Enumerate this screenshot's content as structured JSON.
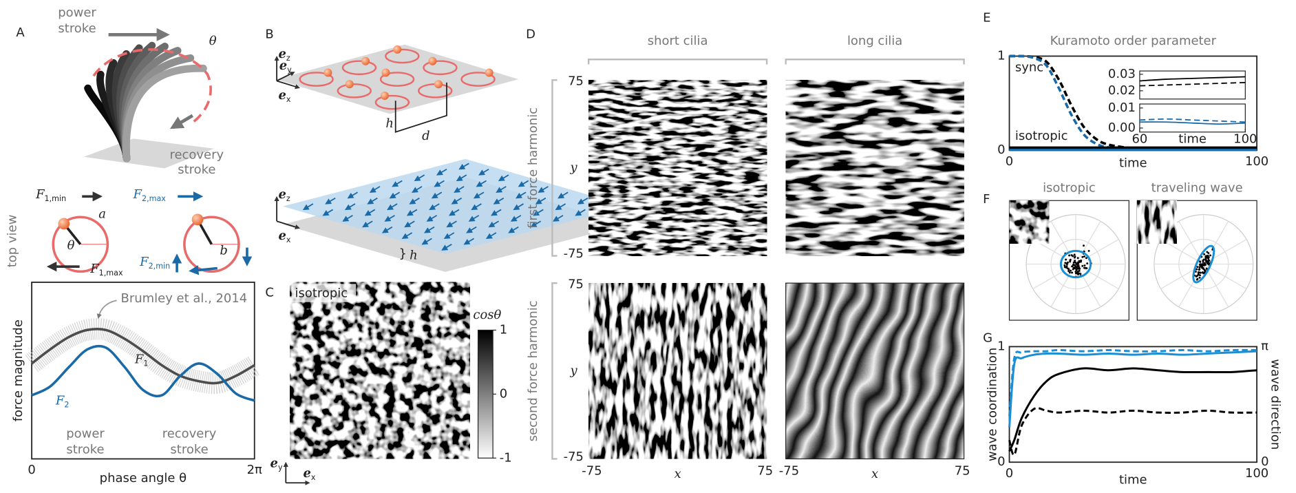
{
  "panels": {
    "A": {
      "letter": "A",
      "power_stroke": [
        "power",
        "stroke"
      ],
      "theta": "θ",
      "recovery_stroke": [
        "recovery",
        "stroke"
      ],
      "top_view": "top view",
      "forces": [
        {
          "symbol": "F",
          "sub": "1,min"
        },
        {
          "symbol": "F",
          "sub": "1,max"
        },
        {
          "symbol": "F",
          "sub": "2,max"
        },
        {
          "symbol": "F",
          "sub": "2,min"
        }
      ],
      "a": "a",
      "theta_circle": "θ",
      "b": "b"
    },
    "B": {
      "letter": "B",
      "ez": {
        "symbol": "e",
        "sub": "z"
      },
      "ey": {
        "symbol": "e",
        "sub": "y"
      },
      "ex": {
        "symbol": "e",
        "sub": "x"
      },
      "h": "h",
      "d": "d"
    },
    "C": {
      "letter": "C",
      "label": "isotropic",
      "ey": {
        "symbol": "e",
        "sub": "y"
      },
      "ex": {
        "symbol": "e",
        "sub": "x"
      },
      "colorbar": {
        "title": "cosθ",
        "clim": [
          -1,
          1
        ],
        "ticks": [
          1,
          0,
          -1
        ]
      }
    },
    "D": {
      "letter": "D",
      "columns": [
        "short cilia",
        "long cilia"
      ],
      "rows": [
        "first force harmonic",
        "second force harmonic"
      ],
      "xlabel": "x",
      "ylabel": "y",
      "xticks": [
        -75,
        75
      ],
      "yticks": [
        75,
        -75
      ]
    },
    "E": {
      "letter": "E"
    },
    "F": {
      "letter": "F",
      "titles": [
        "isotropic",
        "traveling wave"
      ]
    },
    "G": {
      "letter": "G"
    }
  },
  "chart_data": [
    {
      "type": "line",
      "xlabel": "phase angle θ",
      "ylabel": "force magnitude",
      "annotation": "Brumley et al., 2014",
      "phase_labels": [
        [
          "power",
          "stroke"
        ],
        [
          "recovery",
          "stroke"
        ]
      ],
      "xlim": [
        0,
        6.2832
      ],
      "xticks": [
        0,
        {
          "value": 6.2832,
          "label": "2π"
        }
      ],
      "ylim": [
        0,
        1
      ],
      "x": [
        0,
        0.52,
        1.05,
        1.57,
        2.09,
        2.62,
        3.14,
        3.67,
        4.19,
        4.71,
        5.24,
        5.76,
        6.28
      ],
      "series": [
        {
          "label": {
            "symbol": "F",
            "sub": "1"
          },
          "color": "#4d4d4d",
          "values": [
            0.54,
            0.62,
            0.69,
            0.73,
            0.73,
            0.68,
            0.61,
            0.53,
            0.47,
            0.44,
            0.43,
            0.47,
            0.53
          ]
        },
        {
          "label": {
            "symbol": "F",
            "sub": "2"
          },
          "color": "#1a6aa8",
          "values": [
            0.36,
            0.41,
            0.52,
            0.62,
            0.63,
            0.52,
            0.39,
            0.36,
            0.47,
            0.54,
            0.48,
            0.37,
            0.33
          ]
        }
      ]
    },
    {
      "type": "line",
      "title": "Kuramoto order parameter",
      "xlabel": "time",
      "annotations": [
        "sync",
        "isotropic"
      ],
      "xlim": [
        0,
        100
      ],
      "xticks": [
        0,
        100
      ],
      "ylim": [
        0,
        1
      ],
      "yticks": [
        0,
        1
      ],
      "x": [
        0,
        5,
        10,
        15,
        20,
        25,
        30,
        35,
        40,
        50,
        60,
        80,
        100
      ],
      "series": [
        {
          "color": "#000000",
          "linestyle": "dashed",
          "values": [
            1,
            1,
            0.99,
            0.94,
            0.75,
            0.48,
            0.25,
            0.12,
            0.06,
            0.02,
            0.01,
            0.005,
            0.005
          ]
        },
        {
          "color": "#1a6aa8",
          "linestyle": "dashed",
          "values": [
            1,
            1,
            0.98,
            0.9,
            0.66,
            0.38,
            0.17,
            0.07,
            0.03,
            0.01,
            0.005,
            0.005,
            0.005
          ]
        },
        {
          "color": "#000000",
          "linestyle": "solid",
          "values": [
            0.027,
            0.027,
            0.027,
            0.027,
            0.027,
            0.027,
            0.027,
            0.027,
            0.027,
            0.027,
            0.027,
            0.027,
            0.027
          ]
        },
        {
          "color": "#1a6aa8",
          "linestyle": "solid",
          "values": [
            0.003,
            0.003,
            0.003,
            0.003,
            0.003,
            0.003,
            0.003,
            0.003,
            0.003,
            0.003,
            0.003,
            0.003,
            0.003
          ]
        }
      ]
    },
    {
      "type": "line",
      "xlim": [
        60,
        100
      ],
      "ylim": [
        0.015,
        0.032
      ],
      "yticks": [
        0.02,
        0.03
      ],
      "x": [
        60,
        70,
        80,
        90,
        100
      ],
      "series": [
        {
          "color": "#000000",
          "linestyle": "solid",
          "values": [
            0.026,
            0.027,
            0.0275,
            0.028,
            0.0285
          ]
        },
        {
          "color": "#000000",
          "linestyle": "dashed",
          "values": [
            0.023,
            0.0235,
            0.024,
            0.0245,
            0.025
          ]
        }
      ]
    },
    {
      "type": "line",
      "xlabel": "time",
      "xlim": [
        60,
        100
      ],
      "xticks": [
        60,
        100
      ],
      "ylim": [
        -0.002,
        0.012
      ],
      "yticks": [
        {
          "value": 0,
          "label": "0.00"
        },
        0.01
      ],
      "x": [
        60,
        70,
        80,
        90,
        100
      ],
      "series": [
        {
          "color": "#1a6aa8",
          "linestyle": "solid",
          "values": [
            0.003,
            0.003,
            0.0025,
            0.002,
            0.0025
          ]
        },
        {
          "color": "#1a6aa8",
          "linestyle": "dashed",
          "values": [
            0.004,
            0.0045,
            0.004,
            0.0035,
            0.003
          ]
        }
      ]
    },
    {
      "type": "line",
      "xlabel": "time",
      "ylabel": "wave coordination",
      "y2label": "wave direction",
      "xlim": [
        0,
        100
      ],
      "xticks": [
        0,
        100
      ],
      "ylim": [
        0,
        1
      ],
      "yticks": [
        0,
        1
      ],
      "y2lim": [
        0,
        3.1416
      ],
      "y2ticks": [
        0,
        {
          "value": 3.1416,
          "label": "π"
        }
      ],
      "x": [
        0,
        2,
        5,
        10,
        15,
        20,
        30,
        40,
        50,
        60,
        70,
        80,
        90,
        100
      ],
      "series": [
        {
          "color": "#1a8fd6",
          "linestyle": "solid",
          "values": [
            0.3,
            0.85,
            0.9,
            0.93,
            0.94,
            0.94,
            0.93,
            0.94,
            0.93,
            0.94,
            0.93,
            0.94,
            0.95,
            0.96
          ]
        },
        {
          "color": "#1a8fd6",
          "linestyle": "dashed",
          "values": [
            0.4,
            0.9,
            0.95,
            0.96,
            0.96,
            0.97,
            0.96,
            0.97,
            0.96,
            0.96,
            0.97,
            0.96,
            0.97,
            0.97
          ]
        },
        {
          "color": "#000000",
          "linestyle": "solid",
          "axis": "y2",
          "values": [
            0.3,
            0.6,
            1.2,
            1.8,
            2.2,
            2.4,
            2.55,
            2.5,
            2.55,
            2.5,
            2.45,
            2.45,
            2.45,
            2.5
          ]
        },
        {
          "color": "#000000",
          "linestyle": "dashed",
          "axis": "y2",
          "values": [
            0.6,
            0.2,
            1.0,
            1.45,
            1.4,
            1.35,
            1.4,
            1.35,
            1.4,
            1.35,
            1.35,
            1.4,
            1.35,
            1.35
          ]
        }
      ]
    }
  ]
}
